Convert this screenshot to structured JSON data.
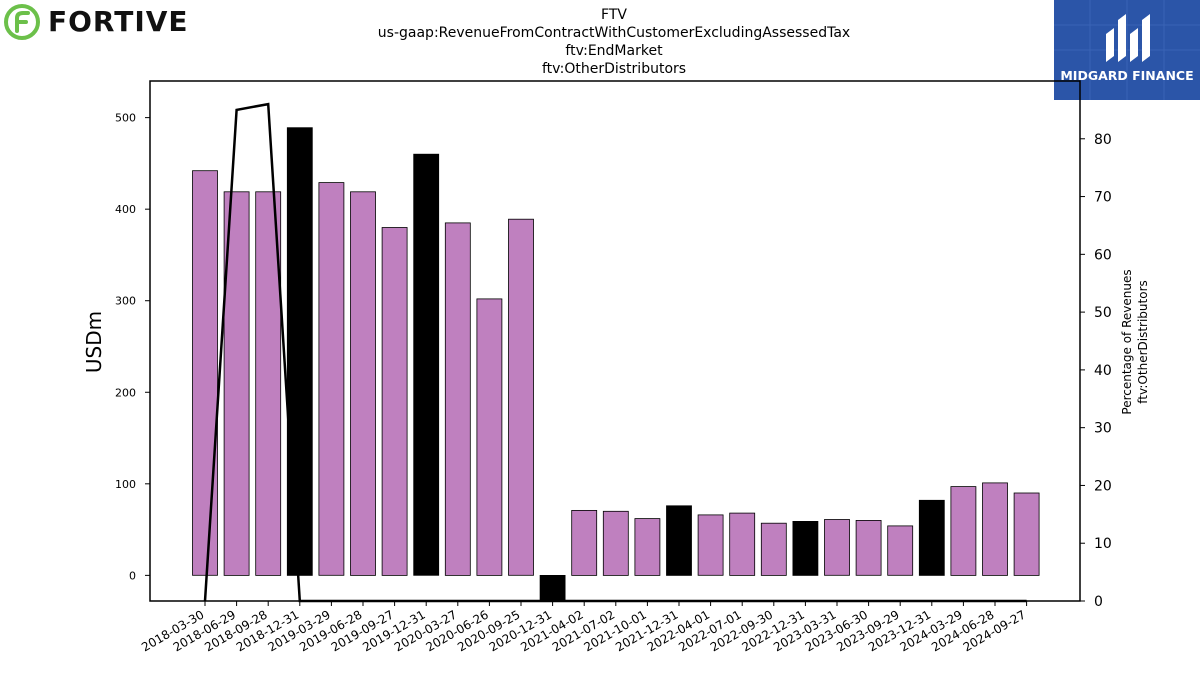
{
  "header": {
    "company_logo": "FORTIVE",
    "brand_logo": "MIDGARD FINANCE",
    "title_lines": [
      "FTV",
      "us-gaap:RevenueFromContractWithCustomerExcludingAssessedTax",
      "ftv:EndMarket",
      "ftv:OtherDistributors"
    ]
  },
  "colors": {
    "quarter_bar": "#bf80bf",
    "year_end_bar": "#000000",
    "line": "#000000",
    "brand_bg": "#2b55a8",
    "logo_green": "#6cc04a"
  },
  "chart_data": {
    "type": "bar",
    "categories": [
      "2018-03-30",
      "2018-06-29",
      "2018-09-28",
      "2018-12-31",
      "2019-03-29",
      "2019-06-28",
      "2019-09-27",
      "2019-12-31",
      "2020-03-27",
      "2020-06-26",
      "2020-09-25",
      "2020-12-31",
      "2021-04-02",
      "2021-07-02",
      "2021-10-01",
      "2021-12-31",
      "2022-04-01",
      "2022-07-01",
      "2022-09-30",
      "2022-12-31",
      "2023-03-31",
      "2023-06-30",
      "2023-09-29",
      "2023-12-31",
      "2024-03-29",
      "2024-06-28",
      "2024-09-27"
    ],
    "series": [
      {
        "axis": "left",
        "values": [
          442,
          419,
          419,
          489,
          429,
          419,
          380,
          460,
          385,
          302,
          389,
          -28,
          71,
          70,
          62,
          76,
          66,
          68,
          57,
          59,
          61,
          60,
          54,
          82,
          97,
          101,
          90
        ]
      },
      {
        "axis": "right",
        "type": "line",
        "values": [
          0,
          85,
          86,
          0,
          0,
          0,
          0,
          0,
          0,
          0,
          0,
          0,
          0,
          0,
          0,
          0,
          0,
          0,
          0,
          0,
          0,
          0,
          0,
          0,
          0,
          0,
          0
        ]
      }
    ],
    "year_end": [
      false,
      false,
      false,
      true,
      false,
      false,
      false,
      true,
      false,
      false,
      false,
      true,
      false,
      false,
      false,
      true,
      false,
      false,
      false,
      true,
      false,
      false,
      false,
      true,
      false,
      false,
      false
    ],
    "ylabel": "USDm",
    "y2label_lines": [
      "Percentage of Revenues",
      "ftv:OtherDistributors"
    ],
    "ylim": [
      -28,
      540
    ],
    "y2lim": [
      0,
      90
    ],
    "yticks": [
      0,
      100,
      200,
      300,
      400,
      500
    ],
    "y2ticks": [
      0,
      10,
      20,
      30,
      40,
      50,
      60,
      70,
      80
    ],
    "grid": false
  }
}
